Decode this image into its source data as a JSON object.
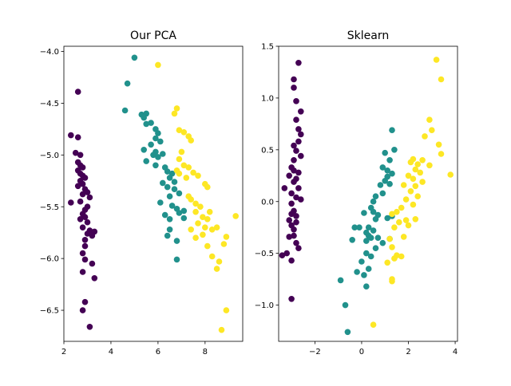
{
  "chart_data": [
    {
      "type": "scatter",
      "title": "Our PCA",
      "xlabel": "",
      "ylabel": "",
      "xlim": [
        2.0,
        9.6
      ],
      "ylim": [
        -6.8,
        -3.95
      ],
      "xticks": [
        2,
        4,
        6,
        8
      ],
      "yticks": [
        -6.5,
        -6.0,
        -5.5,
        -5.0,
        -4.5,
        -4.0
      ],
      "xtick_labels": [
        "2",
        "4",
        "6",
        "8"
      ],
      "ytick_labels": [
        "−6.5",
        "−6.0",
        "−5.5",
        "−5.0",
        "−4.5",
        "−4.0"
      ],
      "grid": false,
      "series": [
        {
          "color": "#440154",
          "points": [
            [
              2.6,
              -4.39
            ],
            [
              2.3,
              -4.81
            ],
            [
              2.6,
              -4.83
            ],
            [
              2.5,
              -4.98
            ],
            [
              2.7,
              -5.0
            ],
            [
              2.6,
              -5.07
            ],
            [
              2.7,
              -5.1
            ],
            [
              2.8,
              -5.12
            ],
            [
              2.6,
              -5.15
            ],
            [
              2.7,
              -5.18
            ],
            [
              2.8,
              -5.2
            ],
            [
              2.9,
              -5.22
            ],
            [
              2.7,
              -5.25
            ],
            [
              2.8,
              -5.28
            ],
            [
              2.6,
              -5.3
            ],
            [
              2.9,
              -5.33
            ],
            [
              3.0,
              -5.36
            ],
            [
              2.8,
              -5.38
            ],
            [
              3.1,
              -5.41
            ],
            [
              2.3,
              -5.46
            ],
            [
              2.7,
              -5.45
            ],
            [
              3.0,
              -5.5
            ],
            [
              2.9,
              -5.53
            ],
            [
              2.8,
              -5.57
            ],
            [
              2.9,
              -5.6
            ],
            [
              2.7,
              -5.62
            ],
            [
              3.0,
              -5.65
            ],
            [
              2.8,
              -5.7
            ],
            [
              3.1,
              -5.73
            ],
            [
              3.0,
              -5.76
            ],
            [
              3.3,
              -5.74
            ],
            [
              3.2,
              -5.78
            ],
            [
              2.9,
              -5.82
            ],
            [
              2.9,
              -5.88
            ],
            [
              2.8,
              -5.95
            ],
            [
              2.9,
              -6.01
            ],
            [
              3.2,
              -6.05
            ],
            [
              2.8,
              -6.13
            ],
            [
              3.3,
              -6.19
            ],
            [
              2.9,
              -6.42
            ],
            [
              2.8,
              -6.5
            ],
            [
              3.1,
              -6.66
            ]
          ]
        },
        {
          "color": "#21918c",
          "points": [
            [
              5.0,
              -4.06
            ],
            [
              4.7,
              -4.31
            ],
            [
              4.6,
              -4.57
            ],
            [
              5.3,
              -4.61
            ],
            [
              5.5,
              -4.6
            ],
            [
              5.4,
              -4.64
            ],
            [
              5.7,
              -4.69
            ],
            [
              5.5,
              -4.7
            ],
            [
              5.9,
              -4.75
            ],
            [
              6.0,
              -4.79
            ],
            [
              5.9,
              -4.84
            ],
            [
              6.1,
              -4.87
            ],
            [
              5.7,
              -4.9
            ],
            [
              5.4,
              -4.95
            ],
            [
              5.9,
              -4.97
            ],
            [
              6.2,
              -4.99
            ],
            [
              5.8,
              -5.0
            ],
            [
              6.0,
              -5.02
            ],
            [
              5.5,
              -5.06
            ],
            [
              5.9,
              -5.1
            ],
            [
              6.3,
              -5.12
            ],
            [
              6.4,
              -5.16
            ],
            [
              6.6,
              -5.18
            ],
            [
              6.5,
              -5.22
            ],
            [
              6.2,
              -5.27
            ],
            [
              6.7,
              -5.26
            ],
            [
              6.4,
              -5.31
            ],
            [
              6.7,
              -5.33
            ],
            [
              6.9,
              -5.37
            ],
            [
              6.5,
              -5.4
            ],
            [
              6.1,
              -5.46
            ],
            [
              6.6,
              -5.49
            ],
            [
              6.8,
              -5.52
            ],
            [
              6.3,
              -5.58
            ],
            [
              6.9,
              -5.56
            ],
            [
              7.1,
              -5.54
            ],
            [
              6.5,
              -5.62
            ],
            [
              6.5,
              -5.72
            ],
            [
              6.4,
              -5.78
            ],
            [
              6.8,
              -5.83
            ],
            [
              7.1,
              -5.61
            ],
            [
              6.8,
              -6.01
            ]
          ]
        },
        {
          "color": "#fde725",
          "points": [
            [
              6.0,
              -4.13
            ],
            [
              6.8,
              -4.55
            ],
            [
              6.7,
              -4.6
            ],
            [
              6.9,
              -4.76
            ],
            [
              7.1,
              -4.78
            ],
            [
              7.3,
              -4.82
            ],
            [
              7.4,
              -4.86
            ],
            [
              7.0,
              -4.97
            ],
            [
              6.9,
              -5.04
            ],
            [
              7.1,
              -5.1
            ],
            [
              7.3,
              -5.12
            ],
            [
              6.8,
              -5.15
            ],
            [
              6.9,
              -5.18
            ],
            [
              7.5,
              -5.17
            ],
            [
              7.2,
              -5.22
            ],
            [
              7.7,
              -5.2
            ],
            [
              8.0,
              -5.28
            ],
            [
              8.1,
              -5.31
            ],
            [
              7.3,
              -5.4
            ],
            [
              7.4,
              -5.43
            ],
            [
              7.6,
              -5.47
            ],
            [
              7.8,
              -5.5
            ],
            [
              7.6,
              -5.55
            ],
            [
              8.2,
              -5.55
            ],
            [
              7.9,
              -5.6
            ],
            [
              8.1,
              -5.62
            ],
            [
              7.7,
              -5.66
            ],
            [
              8.0,
              -5.7
            ],
            [
              7.4,
              -5.72
            ],
            [
              8.3,
              -5.72
            ],
            [
              8.5,
              -5.7
            ],
            [
              7.9,
              -5.77
            ],
            [
              7.6,
              -5.8
            ],
            [
              9.3,
              -5.59
            ],
            [
              8.1,
              -5.88
            ],
            [
              8.3,
              -5.98
            ],
            [
              8.9,
              -5.79
            ],
            [
              8.8,
              -5.86
            ],
            [
              8.5,
              -6.1
            ],
            [
              8.6,
              -6.03
            ],
            [
              8.9,
              -6.5
            ],
            [
              8.7,
              -6.69
            ]
          ]
        }
      ]
    },
    {
      "type": "scatter",
      "title": "Sklearn",
      "xlabel": "",
      "ylabel": "",
      "xlim": [
        -3.55,
        4.1
      ],
      "ylim": [
        -1.35,
        1.5
      ],
      "xticks": [
        -2,
        0,
        2,
        4
      ],
      "yticks": [
        -1.0,
        -0.5,
        0.0,
        0.5,
        1.0,
        1.5
      ],
      "xtick_labels": [
        "−2",
        "0",
        "2",
        "4"
      ],
      "ytick_labels": [
        "−1.0",
        "−0.5",
        "0.0",
        "0.5",
        "1.0",
        "1.5"
      ],
      "grid": false,
      "series": [
        {
          "color": "#440154",
          "points": [
            [
              -2.7,
              1.34
            ],
            [
              -2.9,
              1.18
            ],
            [
              -2.9,
              1.1
            ],
            [
              -2.8,
              0.97
            ],
            [
              -2.6,
              0.87
            ],
            [
              -2.8,
              0.79
            ],
            [
              -2.7,
              0.7
            ],
            [
              -2.6,
              0.65
            ],
            [
              -2.7,
              0.58
            ],
            [
              -2.9,
              0.54
            ],
            [
              -2.8,
              0.49
            ],
            [
              -2.6,
              0.44
            ],
            [
              -2.9,
              0.4
            ],
            [
              -3.0,
              0.33
            ],
            [
              -2.9,
              0.3
            ],
            [
              -2.7,
              0.28
            ],
            [
              -3.1,
              0.25
            ],
            [
              -2.8,
              0.22
            ],
            [
              -2.9,
              0.19
            ],
            [
              -3.3,
              0.13
            ],
            [
              -2.7,
              0.13
            ],
            [
              -3.0,
              0.08
            ],
            [
              -2.8,
              0.04
            ],
            [
              -2.6,
              0.02
            ],
            [
              -3.0,
              -0.02
            ],
            [
              -2.9,
              -0.09
            ],
            [
              -3.0,
              -0.12
            ],
            [
              -2.8,
              -0.14
            ],
            [
              -3.1,
              -0.18
            ],
            [
              -2.8,
              -0.2
            ],
            [
              -3.0,
              -0.23
            ],
            [
              -2.9,
              -0.27
            ],
            [
              -3.1,
              -0.34
            ],
            [
              -2.9,
              -0.33
            ],
            [
              -2.8,
              -0.4
            ],
            [
              -2.7,
              -0.45
            ],
            [
              -3.2,
              -0.5
            ],
            [
              -3.4,
              -0.52
            ],
            [
              -3.0,
              -0.57
            ],
            [
              -3.0,
              -0.94
            ]
          ]
        },
        {
          "color": "#21918c",
          "points": [
            [
              1.3,
              0.69
            ],
            [
              1.4,
              0.5
            ],
            [
              1.0,
              0.47
            ],
            [
              1.2,
              0.4
            ],
            [
              0.9,
              0.33
            ],
            [
              1.1,
              0.3
            ],
            [
              1.3,
              0.27
            ],
            [
              1.1,
              0.24
            ],
            [
              1.0,
              0.2
            ],
            [
              0.8,
              0.16
            ],
            [
              1.2,
              0.17
            ],
            [
              0.9,
              0.08
            ],
            [
              0.6,
              0.05
            ],
            [
              0.5,
              0.0
            ],
            [
              0.4,
              -0.06
            ],
            [
              0.5,
              -0.1
            ],
            [
              0.1,
              -0.11
            ],
            [
              0.7,
              -0.13
            ],
            [
              0.6,
              -0.17
            ],
            [
              1.1,
              -0.16
            ],
            [
              1.3,
              -0.14
            ],
            [
              -0.3,
              -0.25
            ],
            [
              0.3,
              -0.25
            ],
            [
              -0.1,
              -0.25
            ],
            [
              0.5,
              -0.28
            ],
            [
              0.2,
              -0.3
            ],
            [
              0.3,
              -0.33
            ],
            [
              0.4,
              -0.35
            ],
            [
              0.7,
              -0.35
            ],
            [
              -0.4,
              -0.37
            ],
            [
              0.2,
              -0.38
            ],
            [
              1.2,
              -0.36
            ],
            [
              0.9,
              -0.4
            ],
            [
              0.6,
              -0.45
            ],
            [
              0.2,
              -0.5
            ],
            [
              0.4,
              -0.53
            ],
            [
              0.0,
              -0.58
            ],
            [
              -0.2,
              -0.68
            ],
            [
              0.1,
              -0.71
            ],
            [
              0.3,
              -0.65
            ],
            [
              0.2,
              -0.82
            ],
            [
              -0.9,
              -0.76
            ],
            [
              -0.7,
              -1.0
            ],
            [
              -0.6,
              -1.26
            ]
          ]
        },
        {
          "color": "#fde725",
          "points": [
            [
              3.2,
              1.37
            ],
            [
              3.4,
              1.18
            ],
            [
              2.9,
              0.79
            ],
            [
              3.0,
              0.69
            ],
            [
              2.7,
              0.63
            ],
            [
              3.3,
              0.55
            ],
            [
              3.4,
              0.46
            ],
            [
              2.2,
              0.41
            ],
            [
              2.6,
              0.4
            ],
            [
              2.9,
              0.35
            ],
            [
              2.1,
              0.38
            ],
            [
              2.4,
              0.36
            ],
            [
              2.3,
              0.31
            ],
            [
              2.5,
              0.28
            ],
            [
              3.8,
              0.26
            ],
            [
              2.0,
              0.25
            ],
            [
              2.2,
              0.22
            ],
            [
              2.6,
              0.19
            ],
            [
              2.3,
              0.15
            ],
            [
              1.8,
              0.16
            ],
            [
              2.1,
              0.1
            ],
            [
              2.4,
              0.05
            ],
            [
              1.9,
              0.02
            ],
            [
              2.2,
              -0.03
            ],
            [
              1.7,
              -0.06
            ],
            [
              1.5,
              -0.1
            ],
            [
              1.3,
              -0.12
            ],
            [
              2.3,
              -0.17
            ],
            [
              1.9,
              -0.18
            ],
            [
              1.6,
              -0.2
            ],
            [
              1.4,
              -0.25
            ],
            [
              2.0,
              -0.23
            ],
            [
              1.8,
              -0.34
            ],
            [
              1.2,
              -0.36
            ],
            [
              1.3,
              -0.44
            ],
            [
              1.5,
              -0.52
            ],
            [
              1.7,
              -0.53
            ],
            [
              1.4,
              -0.55
            ],
            [
              1.1,
              -0.59
            ],
            [
              1.3,
              -0.77
            ],
            [
              1.3,
              -0.75
            ],
            [
              0.5,
              -1.19
            ]
          ]
        }
      ]
    }
  ]
}
